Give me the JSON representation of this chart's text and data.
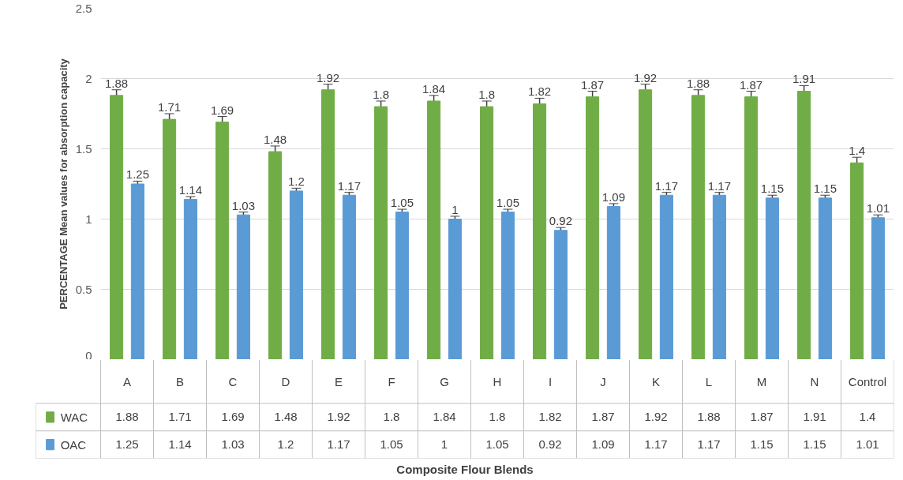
{
  "chart_data": [
    {
      "type": "bar",
      "ylabel": "PERCENTAGE Mean values for absorption capacity",
      "annotations": [
        "Composite Flour Blends"
      ],
      "categories": [
        "A",
        "B",
        "C",
        "D",
        "E",
        "F",
        "G",
        "H",
        "I",
        "J",
        "K",
        "L",
        "M",
        "N",
        "Control"
      ],
      "series": [
        {
          "name": "WAC",
          "color": "#70ad47",
          "values": [
            1.88,
            1.71,
            1.69,
            1.48,
            1.92,
            1.8,
            1.84,
            1.8,
            1.82,
            1.87,
            1.92,
            1.88,
            1.87,
            1.91,
            1.4
          ],
          "errors": [
            0.04,
            0.04,
            0.04,
            0.04,
            0.04,
            0.04,
            0.04,
            0.04,
            0.04,
            0.04,
            0.04,
            0.04,
            0.04,
            0.04,
            0.04
          ]
        },
        {
          "name": "OAC",
          "color": "#5b9bd5",
          "values": [
            1.25,
            1.14,
            1.03,
            1.2,
            1.17,
            1.05,
            1,
            1.05,
            0.92,
            1.09,
            1.17,
            1.17,
            1.15,
            1.15,
            1.01
          ],
          "errors": [
            0.02,
            0.02,
            0.02,
            0.02,
            0.02,
            0.02,
            0.02,
            0.02,
            0.02,
            0.02,
            0.02,
            0.02,
            0.02,
            0.02,
            0.02
          ]
        }
      ],
      "ylim": [
        0,
        2.5
      ],
      "yticks": [
        0,
        0.5,
        1,
        1.5,
        2,
        2.5
      ],
      "grid": "y",
      "legend": "bottom",
      "data_labels": true
    },
    {
      "type": "other",
      "annotations": [
        "1.88",
        "1.71",
        "1.69",
        "1.48",
        "1.92",
        "1.8",
        "1.84",
        "1.8",
        "1.82",
        "1.87",
        "1.92",
        "1.88",
        "1.87",
        "1.91",
        "1.4",
        "1.25",
        "1.14",
        "1.03",
        "1.2",
        "1.17",
        "1.05",
        "1",
        "1.05",
        "0.92",
        "1.09",
        "1.17",
        "1.17",
        "1.15",
        "1.15",
        "1.01"
      ]
    }
  ]
}
